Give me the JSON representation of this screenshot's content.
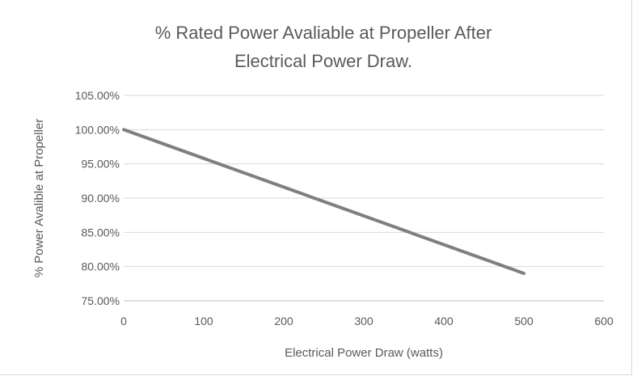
{
  "chart_data": {
    "type": "line",
    "title_lines": [
      "% Rated Power Avaliable at Propeller After",
      "Electrical Power Draw."
    ],
    "xlabel": "Electrical Power Draw (watts)",
    "ylabel": "% Power Avalible at Propeller",
    "xlim": [
      0,
      600
    ],
    "ylim": [
      0.75,
      1.05
    ],
    "x_ticks": [
      0,
      100,
      200,
      300,
      400,
      500,
      600
    ],
    "x_tick_labels": [
      "0",
      "100",
      "200",
      "300",
      "400",
      "500",
      "600"
    ],
    "y_ticks": [
      0.75,
      0.8,
      0.85,
      0.9,
      0.95,
      1.0,
      1.05
    ],
    "y_tick_labels": [
      "75.00%",
      "80.00%",
      "85.00%",
      "90.00%",
      "95.00%",
      "100.00%",
      "105.00%"
    ],
    "grid": "horizontal",
    "legend": "none",
    "series": [
      {
        "color": "#7f7f7f",
        "points": [
          {
            "x": 0,
            "y": 1.0
          },
          {
            "x": 500,
            "y": 0.79
          }
        ]
      }
    ],
    "colors": {
      "gridline": "#d9d9d9",
      "axis_line": "#bfbfbf",
      "text": "#595959"
    }
  }
}
